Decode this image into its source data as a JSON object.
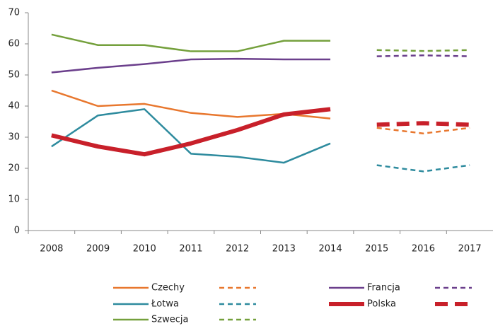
{
  "chart_data": {
    "type": "line",
    "categories": [
      "2008",
      "2009",
      "2010",
      "2011",
      "2012",
      "2013",
      "2014",
      "2015",
      "2016",
      "2017"
    ],
    "ylim": [
      0,
      70
    ],
    "yticks": [
      0,
      10,
      20,
      30,
      40,
      50,
      60,
      70
    ],
    "series": [
      {
        "name": "Czechy",
        "color": "#e8772e",
        "width": 2.5,
        "values": [
          45,
          40,
          40.7,
          37.8,
          36.5,
          37.5,
          36,
          null,
          null,
          null
        ],
        "forecast": [
          null,
          null,
          null,
          null,
          null,
          null,
          null,
          33,
          31.2,
          33
        ]
      },
      {
        "name": "Łotwa",
        "color": "#2e8b9e",
        "width": 2.5,
        "values": [
          27,
          37,
          39,
          24.7,
          23.7,
          21.8,
          28,
          null,
          null,
          null
        ],
        "forecast": [
          null,
          null,
          null,
          null,
          null,
          null,
          null,
          21,
          19,
          21
        ]
      },
      {
        "name": "Szwecja",
        "color": "#74a03c",
        "width": 2.5,
        "values": [
          63,
          59.6,
          59.6,
          57.6,
          57.6,
          61,
          61,
          null,
          null,
          null
        ],
        "forecast": [
          null,
          null,
          null,
          null,
          null,
          null,
          null,
          58,
          57.7,
          58
        ]
      },
      {
        "name": "Francja",
        "color": "#6b3f8c",
        "width": 2.5,
        "values": [
          50.8,
          52.3,
          53.5,
          55,
          55.2,
          55,
          55,
          null,
          null,
          null
        ],
        "forecast": [
          null,
          null,
          null,
          null,
          null,
          null,
          null,
          56,
          56.3,
          56
        ]
      },
      {
        "name": "Polska",
        "color": "#c8202a",
        "width": 6,
        "values": [
          30.6,
          27,
          24.5,
          28,
          32.3,
          37.3,
          39,
          null,
          null,
          null
        ],
        "forecast": [
          null,
          null,
          null,
          null,
          null,
          null,
          null,
          34,
          34.5,
          34
        ]
      }
    ]
  }
}
